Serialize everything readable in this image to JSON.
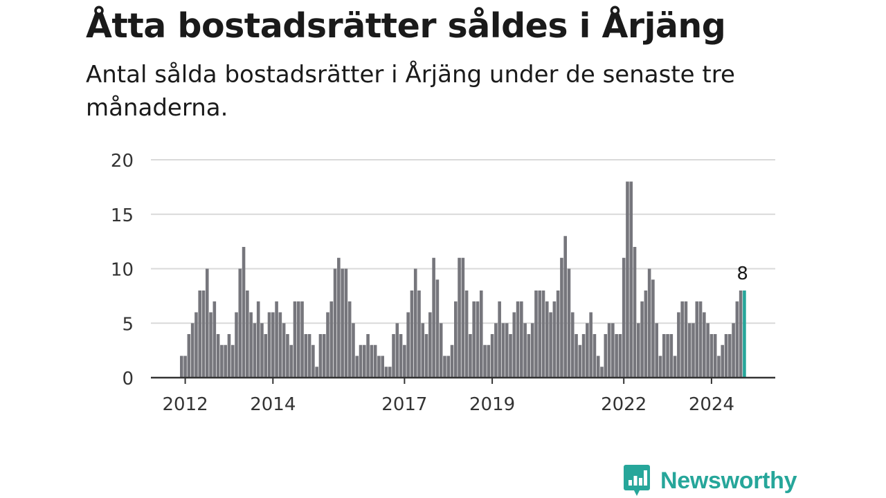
{
  "title": "Åtta bostadsrätter såldes i Årjäng",
  "subtitle": "Antal sålda bostadsrätter i Årjäng under de senaste tre månaderna.",
  "brand": {
    "name": "Newsworthy",
    "color": "#26a69a",
    "icon": "newsworthy-logo-icon"
  },
  "colors": {
    "bar": "#76767c",
    "highlight": "#26a69a",
    "grid": "#d9d9d9",
    "axis": "#333333"
  },
  "chart_data": {
    "type": "bar",
    "ylim": [
      0,
      20
    ],
    "yticks": [
      0,
      5,
      10,
      15,
      20
    ],
    "xtick_labels": [
      {
        "label": "2012",
        "index": 1
      },
      {
        "label": "2014",
        "index": 25
      },
      {
        "label": "2017",
        "index": 61
      },
      {
        "label": "2019",
        "index": 85
      },
      {
        "label": "2022",
        "index": 121
      },
      {
        "label": "2024",
        "index": 145
      }
    ],
    "grid": true,
    "highlight_index": 154,
    "highlight_label": "8",
    "values": [
      2,
      2,
      4,
      5,
      6,
      8,
      8,
      10,
      6,
      7,
      4,
      3,
      3,
      4,
      3,
      6,
      10,
      12,
      8,
      6,
      5,
      7,
      5,
      4,
      6,
      6,
      7,
      6,
      5,
      4,
      3,
      7,
      7,
      7,
      4,
      4,
      3,
      1,
      4,
      4,
      6,
      7,
      10,
      11,
      10,
      10,
      7,
      5,
      2,
      3,
      3,
      4,
      3,
      3,
      2,
      2,
      1,
      1,
      4,
      5,
      4,
      3,
      6,
      8,
      10,
      8,
      5,
      4,
      6,
      11,
      9,
      5,
      2,
      2,
      3,
      7,
      11,
      11,
      8,
      4,
      7,
      7,
      8,
      3,
      3,
      4,
      5,
      7,
      5,
      5,
      4,
      6,
      7,
      7,
      5,
      4,
      5,
      8,
      8,
      8,
      7,
      6,
      7,
      8,
      11,
      13,
      10,
      6,
      4,
      3,
      4,
      5,
      6,
      4,
      2,
      1,
      4,
      5,
      5,
      4,
      4,
      11,
      18,
      18,
      12,
      5,
      7,
      8,
      10,
      9,
      5,
      2,
      4,
      4,
      4,
      2,
      6,
      7,
      7,
      5,
      5,
      7,
      7,
      6,
      5,
      4,
      4,
      2,
      3,
      4,
      4,
      5,
      7,
      8,
      8
    ]
  }
}
